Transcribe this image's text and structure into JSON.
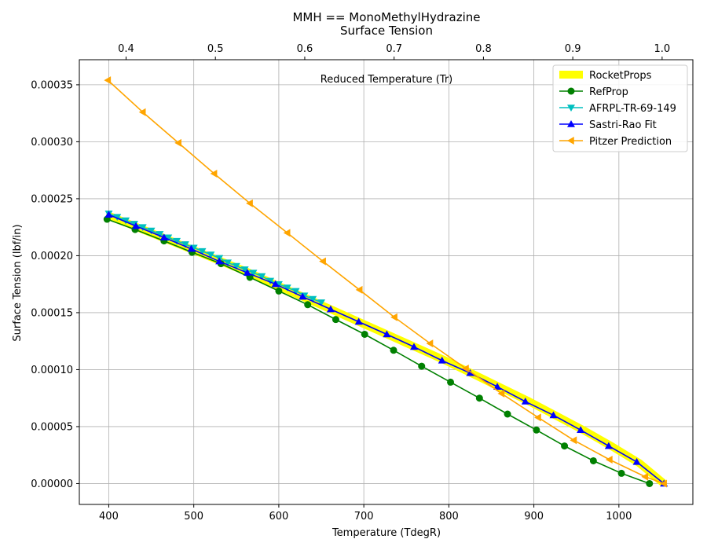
{
  "chart_data": {
    "type": "line",
    "title": "MMH == MonoMethylHydrazine",
    "subtitle": "Surface Tension",
    "xlabel": "Temperature (TdegR)",
    "ylabel": "Surface Tension (lbf/in)",
    "x2label": "Reduced Temperature (Tr)",
    "xlim": [
      365.4,
      1087
    ],
    "ylim": [
      -1.83e-05,
      0.000372
    ],
    "x2lim": [
      0.3477,
      1.0344
    ],
    "xticks": [
      "400",
      "500",
      "600",
      "700",
      "800",
      "900",
      "1000"
    ],
    "x2ticks": [
      "0.4",
      "0.5",
      "0.6",
      "0.7",
      "0.8",
      "0.9",
      "1.0"
    ],
    "yticks": [
      "0.00000",
      "0.00005",
      "0.00010",
      "0.00015",
      "0.00020",
      "0.00025",
      "0.00030",
      "0.00035"
    ],
    "grid": true,
    "legend_position": "top-right",
    "series": [
      {
        "name": "RocketProps",
        "color": "#ffff00",
        "marker": "none",
        "line": "thick",
        "x": [
          397,
          430,
          463,
          496,
          529,
          562,
          595,
          628,
          661,
          694,
          727,
          760,
          793,
          826,
          859,
          892,
          925,
          958,
          991,
          1024,
          1053
        ],
        "y": [
          0.000236,
          0.000226,
          0.000216,
          0.000206,
          0.000196,
          0.000186,
          0.000175,
          0.000164,
          0.000153,
          0.000142,
          0.000131,
          0.00012,
          0.000109,
          9.7e-05,
          8.5e-05,
          7.3e-05,
          6e-05,
          4.7e-05,
          3.3e-05,
          1.8e-05,
          0.0
        ]
      },
      {
        "name": "RefProp",
        "color": "#008000",
        "marker": "circle",
        "x": [
          398,
          431,
          465,
          498,
          532,
          566,
          600,
          634,
          667,
          701,
          735,
          768,
          802,
          836,
          869,
          903,
          936,
          970,
          1003,
          1036
        ],
        "y": [
          0.000232,
          0.000223,
          0.000213,
          0.000203,
          0.000193,
          0.000181,
          0.000169,
          0.000157,
          0.000144,
          0.000131,
          0.000117,
          0.000103,
          8.9e-05,
          7.5e-05,
          6.1e-05,
          4.7e-05,
          3.3e-05,
          2e-05,
          9e-06,
          0.0
        ]
      },
      {
        "name": "AFRPL-TR-69-149",
        "color": "#00bfbf",
        "marker": "triangle-down",
        "x": [
          400,
          410,
          420,
          430,
          440,
          450,
          460,
          470,
          480,
          490,
          500,
          510,
          520,
          530,
          540,
          550,
          560,
          570,
          580,
          590,
          600,
          610,
          620,
          630,
          640,
          650
        ],
        "y": [
          0.000237,
          0.000234,
          0.000231,
          0.000228,
          0.000225,
          0.000222,
          0.000219,
          0.000216,
          0.000213,
          0.00021,
          0.000207,
          0.000204,
          0.000201,
          0.000198,
          0.000194,
          0.000191,
          0.000188,
          0.000185,
          0.000182,
          0.000178,
          0.000175,
          0.000172,
          0.000169,
          0.000165,
          0.000162,
          0.000159
        ]
      },
      {
        "name": "Sastri-Rao Fit",
        "color": "#0000ff",
        "marker": "triangle-up",
        "x": [
          400,
          432,
          465,
          497,
          530,
          563,
          596,
          628,
          661,
          694,
          727,
          759,
          792,
          825,
          857,
          890,
          923,
          955,
          988,
          1021,
          1053
        ],
        "y": [
          0.000236,
          0.000226,
          0.000216,
          0.000206,
          0.000195,
          0.000185,
          0.000175,
          0.000164,
          0.000153,
          0.000142,
          0.000131,
          0.00012,
          0.000108,
          9.7e-05,
          8.5e-05,
          7.2e-05,
          6e-05,
          4.7e-05,
          3.3e-05,
          1.9e-05,
          0.0
        ]
      },
      {
        "name": "Pitzer Prediction",
        "color": "#ffa500",
        "marker": "triangle-left",
        "x": [
          399,
          440,
          482,
          524,
          566,
          610,
          652,
          695,
          736,
          778,
          820,
          862,
          905,
          947,
          989,
          1031,
          1053
        ],
        "y": [
          0.000354,
          0.000326,
          0.000299,
          0.000272,
          0.000246,
          0.00022,
          0.000195,
          0.00017,
          0.000146,
          0.000123,
          0.000101,
          7.9e-05,
          5.8e-05,
          3.8e-05,
          2.1e-05,
          6e-06,
          0.0
        ]
      }
    ]
  }
}
